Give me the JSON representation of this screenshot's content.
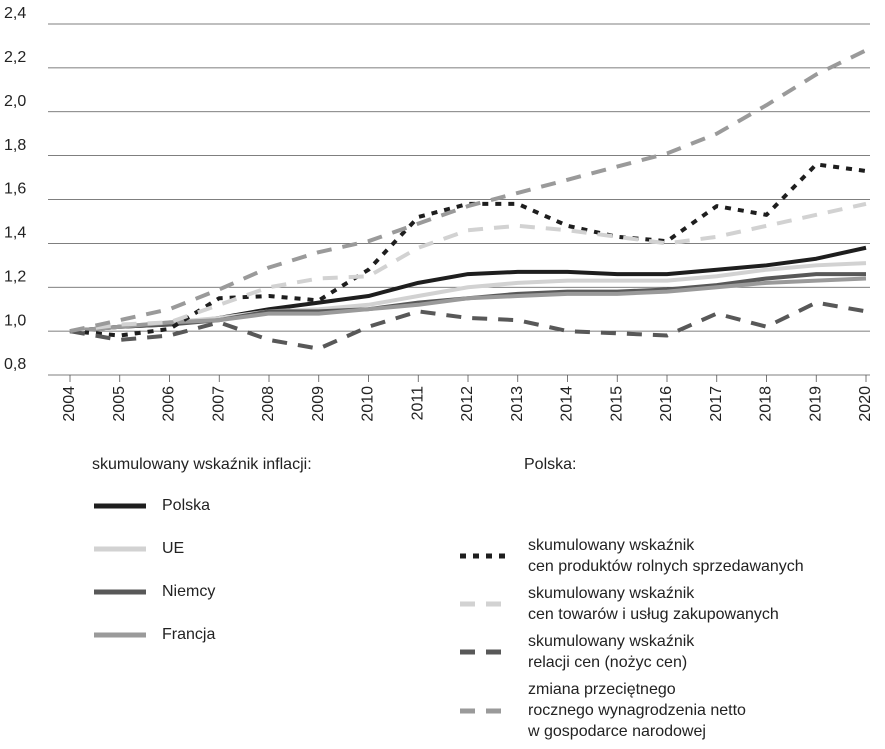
{
  "chart_data": {
    "type": "line",
    "categories": [
      "2004",
      "2005",
      "2006",
      "2007",
      "2008",
      "2009",
      "2010",
      "2011",
      "2012",
      "2013",
      "2014",
      "2015",
      "2016",
      "2017",
      "2018",
      "2019",
      "2020"
    ],
    "ylim": [
      0.8,
      2.4
    ],
    "yticks": [
      {
        "value": 0.8,
        "label": "0,8"
      },
      {
        "value": 1.0,
        "label": "1,0"
      },
      {
        "value": 1.2,
        "label": "1,2"
      },
      {
        "value": 1.4,
        "label": "1,4"
      },
      {
        "value": 1.6,
        "label": "1,6"
      },
      {
        "value": 1.8,
        "label": "1,8"
      },
      {
        "value": 2.0,
        "label": "2,0"
      },
      {
        "value": 2.2,
        "label": "2,2"
      },
      {
        "value": 2.4,
        "label": "2,4"
      }
    ],
    "grid": true,
    "legend_titles": [
      "skumulowany wskaźnik inflacji:",
      "Polska:"
    ],
    "series": [
      {
        "name": "Polska",
        "color": "#1e1e1e",
        "dash": "solid",
        "legend_group": 0,
        "values": [
          1.0,
          1.02,
          1.03,
          1.06,
          1.1,
          1.13,
          1.16,
          1.22,
          1.26,
          1.27,
          1.27,
          1.26,
          1.26,
          1.28,
          1.3,
          1.33,
          1.38
        ]
      },
      {
        "name": "UE",
        "color": "#d2d2d2",
        "dash": "solid",
        "legend_group": 0,
        "values": [
          1.0,
          1.02,
          1.04,
          1.06,
          1.09,
          1.1,
          1.12,
          1.16,
          1.2,
          1.22,
          1.23,
          1.23,
          1.23,
          1.25,
          1.28,
          1.3,
          1.31
        ]
      },
      {
        "name": "Niemcy",
        "color": "#585858",
        "dash": "solid",
        "legend_group": 0,
        "values": [
          1.0,
          1.02,
          1.03,
          1.05,
          1.09,
          1.09,
          1.1,
          1.13,
          1.15,
          1.17,
          1.18,
          1.18,
          1.19,
          1.21,
          1.24,
          1.26,
          1.26
        ]
      },
      {
        "name": "Francja",
        "color": "#9a9a9a",
        "dash": "solid",
        "legend_group": 0,
        "values": [
          1.0,
          1.02,
          1.04,
          1.05,
          1.08,
          1.08,
          1.1,
          1.12,
          1.15,
          1.16,
          1.17,
          1.17,
          1.18,
          1.2,
          1.22,
          1.23,
          1.24
        ]
      },
      {
        "name": "skumulowany wskaźnik\ncen produktów rolnych sprzedawanych",
        "color": "#1e1e1e",
        "dash": "dotted",
        "legend_group": 1,
        "values": [
          1.0,
          0.98,
          1.01,
          1.15,
          1.16,
          1.14,
          1.28,
          1.52,
          1.58,
          1.58,
          1.48,
          1.43,
          1.41,
          1.57,
          1.53,
          1.76,
          1.73
        ]
      },
      {
        "name": "skumulowany wskaźnik\ncen towarów i usług zakupowanych",
        "color": "#d2d2d2",
        "dash": "dashed",
        "legend_group": 1,
        "values": [
          1.0,
          1.03,
          1.04,
          1.12,
          1.2,
          1.24,
          1.25,
          1.38,
          1.46,
          1.48,
          1.46,
          1.43,
          1.4,
          1.43,
          1.48,
          1.53,
          1.58
        ]
      },
      {
        "name": "skumulowany wskaźnik\nrelacji cen (nożyc cen)",
        "color": "#585858",
        "dash": "dashed",
        "legend_group": 1,
        "values": [
          1.0,
          0.96,
          0.98,
          1.04,
          0.96,
          0.92,
          1.02,
          1.09,
          1.06,
          1.05,
          1.0,
          0.99,
          0.98,
          1.08,
          1.02,
          1.13,
          1.09
        ]
      },
      {
        "name": "zmiana przeciętnego\nrocznego wynagrodzenia netto\nw gospodarce narodowej",
        "color": "#9a9a9a",
        "dash": "dashed",
        "legend_group": 1,
        "values": [
          1.0,
          1.05,
          1.1,
          1.19,
          1.29,
          1.36,
          1.41,
          1.49,
          1.57,
          1.63,
          1.69,
          1.75,
          1.81,
          1.9,
          2.03,
          2.17,
          2.28
        ]
      }
    ]
  }
}
